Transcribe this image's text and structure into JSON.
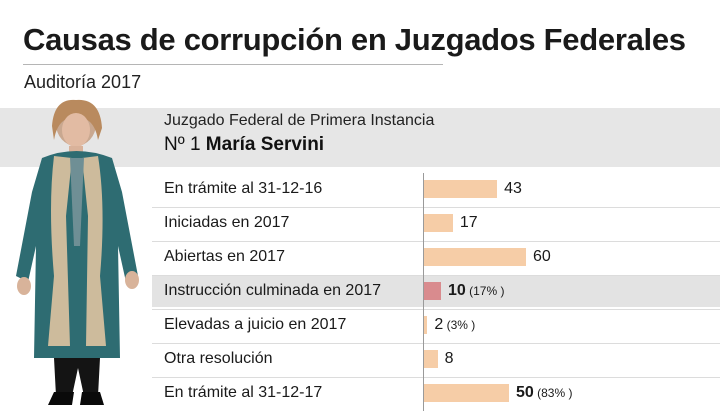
{
  "header": {
    "title": "Causas de corrupción en Juzgados Federales",
    "subtitle": "Auditoría 2017"
  },
  "court": {
    "name": "Juzgado Federal de Primera Instancia",
    "number": "Nº 1",
    "judge": "María Servini"
  },
  "colors": {
    "bar": "#f6cda7",
    "bar_highlight": "#d98b8e",
    "band": "#e6e6e6"
  },
  "chart_data": {
    "type": "bar",
    "orientation": "horizontal",
    "categories": [
      "En trámite al 31-12-16",
      "Iniciadas en 2017",
      "Abiertas en 2017",
      "Instrucción culminada en 2017",
      "Elevadas a juicio en 2017",
      "Otra resolución",
      "En trámite al 31-12-17"
    ],
    "values": [
      43,
      17,
      60,
      10,
      2,
      8,
      50
    ],
    "value_labels": [
      "43",
      "17",
      "60",
      "10",
      "2",
      "8",
      "50"
    ],
    "percent_labels": [
      "",
      "",
      "",
      "(17% )",
      "(3% )",
      "",
      "(83% )"
    ],
    "bold": [
      false,
      false,
      false,
      true,
      false,
      false,
      true
    ],
    "highlight": [
      false,
      false,
      false,
      true,
      false,
      false,
      false
    ],
    "xlim": [
      0,
      60
    ]
  }
}
